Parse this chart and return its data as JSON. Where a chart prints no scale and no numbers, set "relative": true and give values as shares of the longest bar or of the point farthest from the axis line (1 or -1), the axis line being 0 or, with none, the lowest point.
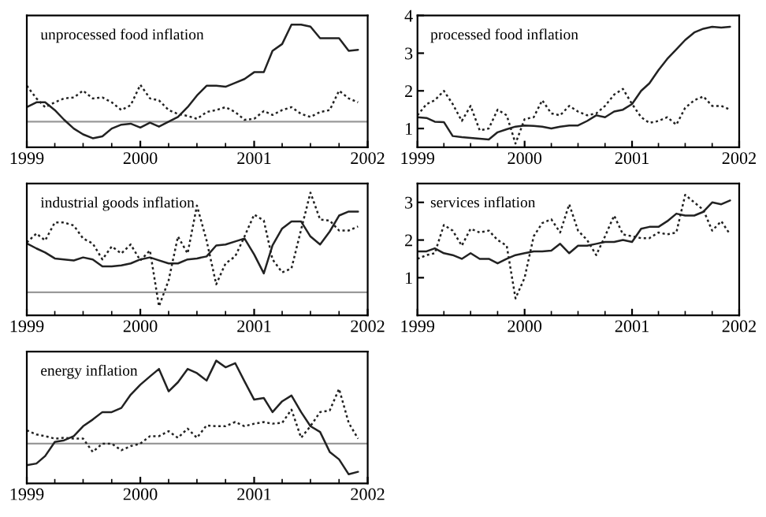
{
  "chart_data": [
    {
      "type": "line",
      "title": "unprocessed food inflation",
      "relative": true,
      "x": [
        "1999-01",
        "1999-02",
        "1999-03",
        "1999-04",
        "1999-05",
        "1999-06",
        "1999-07",
        "1999-08",
        "1999-09",
        "1999-10",
        "1999-11",
        "1999-12",
        "2000-01",
        "2000-02",
        "2000-03",
        "2000-04",
        "2000-05",
        "2000-06",
        "2000-07",
        "2000-08",
        "2000-09",
        "2000-10",
        "2000-11",
        "2000-12",
        "2001-01",
        "2001-02",
        "2001-03",
        "2001-04",
        "2001-05",
        "2001-06",
        "2001-07",
        "2001-08",
        "2001-09",
        "2001-10",
        "2001-11",
        "2001-12"
      ],
      "xlim": [
        "1999",
        "2002"
      ],
      "xticks": [
        "1999",
        "2000",
        "2001",
        "2002"
      ],
      "ref_lines": [
        {
          "axis": "y",
          "value": 0,
          "color": "#999999"
        }
      ],
      "series": [
        {
          "color": "#222222",
          "line_style": "solid",
          "values": [
            0.15,
            0.2,
            0.2,
            0.12,
            0.02,
            -0.07,
            -0.13,
            -0.17,
            -0.15,
            -0.07,
            -0.03,
            -0.02,
            -0.06,
            -0.01,
            -0.05,
            0,
            0.05,
            0.15,
            0.27,
            0.37,
            0.37,
            0.36,
            0.4,
            0.44,
            0.51,
            0.51,
            0.73,
            0.8,
            1,
            1,
            0.98,
            0.86,
            0.86,
            0.86,
            0.73,
            0.74
          ]
        },
        {
          "color": "#222222",
          "line_style": "dotted",
          "values": [
            0.37,
            0.24,
            0.15,
            0.2,
            0.24,
            0.25,
            0.32,
            0.24,
            0.25,
            0.2,
            0.12,
            0.17,
            0.38,
            0.24,
            0.22,
            0.12,
            0.08,
            0.06,
            0.03,
            0.1,
            0.12,
            0.15,
            0.1,
            0.02,
            0.03,
            0.11,
            0.07,
            0.12,
            0.15,
            0.08,
            0.05,
            0.1,
            0.12,
            0.32,
            0.24,
            0.2
          ]
        }
      ]
    },
    {
      "type": "line",
      "title": "processed food inflation",
      "x": [
        "1999-01",
        "1999-02",
        "1999-03",
        "1999-04",
        "1999-05",
        "1999-06",
        "1999-07",
        "1999-08",
        "1999-09",
        "1999-10",
        "1999-11",
        "1999-12",
        "2000-01",
        "2000-02",
        "2000-03",
        "2000-04",
        "2000-05",
        "2000-06",
        "2000-07",
        "2000-08",
        "2000-09",
        "2000-10",
        "2000-11",
        "2000-12",
        "2001-01",
        "2001-02",
        "2001-03",
        "2001-04",
        "2001-05",
        "2001-06",
        "2001-07",
        "2001-08",
        "2001-09",
        "2001-10",
        "2001-11",
        "2001-12"
      ],
      "xlim": [
        "1999",
        "2002"
      ],
      "xticks": [
        "1999",
        "2000",
        "2001",
        "2002"
      ],
      "ylim": [
        0.5,
        4
      ],
      "yticks": [
        1,
        2,
        3,
        4
      ],
      "series": [
        {
          "color": "#222222",
          "line_style": "solid",
          "values": [
            1.3,
            1.28,
            1.18,
            1.17,
            0.8,
            0.77,
            0.75,
            0.73,
            0.71,
            0.9,
            0.98,
            1.05,
            1.08,
            1.07,
            1.05,
            1.0,
            1.05,
            1.08,
            1.08,
            1.2,
            1.35,
            1.3,
            1.45,
            1.5,
            1.65,
            2.0,
            2.2,
            2.55,
            2.85,
            3.1,
            3.35,
            3.55,
            3.65,
            3.7,
            3.68,
            3.7
          ]
        },
        {
          "color": "#222222",
          "line_style": "dotted",
          "values": [
            1.35,
            1.65,
            1.75,
            2.0,
            1.65,
            1.2,
            1.6,
            0.95,
            1.0,
            1.5,
            1.35,
            0.6,
            1.25,
            1.3,
            1.75,
            1.4,
            1.35,
            1.6,
            1.45,
            1.35,
            1.4,
            1.6,
            1.9,
            2.05,
            1.65,
            1.3,
            1.15,
            1.2,
            1.3,
            1.1,
            1.55,
            1.75,
            1.85,
            1.6,
            1.6,
            1.5
          ]
        }
      ]
    },
    {
      "type": "line",
      "title": "industrial goods inflation",
      "relative": true,
      "x": [
        "1999-01",
        "1999-02",
        "1999-03",
        "1999-04",
        "1999-05",
        "1999-06",
        "1999-07",
        "1999-08",
        "1999-09",
        "1999-10",
        "1999-11",
        "1999-12",
        "2000-01",
        "2000-02",
        "2000-03",
        "2000-04",
        "2000-05",
        "2000-06",
        "2000-07",
        "2000-08",
        "2000-09",
        "2000-10",
        "2000-11",
        "2000-12",
        "2001-01",
        "2001-02",
        "2001-03",
        "2001-04",
        "2001-05",
        "2001-06",
        "2001-07",
        "2001-08",
        "2001-09",
        "2001-10",
        "2001-11",
        "2001-12"
      ],
      "xlim": [
        "1999",
        "2002"
      ],
      "xticks": [
        "1999",
        "2000",
        "2001",
        "2002"
      ],
      "ref_lines": [
        {
          "axis": "y",
          "value": 0,
          "color": "#999999"
        }
      ],
      "series": [
        {
          "color": "#222222",
          "line_style": "solid",
          "values": [
            0.49,
            0.44,
            0.4,
            0.34,
            0.33,
            0.32,
            0.35,
            0.33,
            0.26,
            0.26,
            0.27,
            0.29,
            0.33,
            0.35,
            0.32,
            0.29,
            0.29,
            0.33,
            0.34,
            0.36,
            0.47,
            0.48,
            0.51,
            0.54,
            0.38,
            0.19,
            0.47,
            0.64,
            0.71,
            0.71,
            0.56,
            0.48,
            0.61,
            0.77,
            0.81,
            0.81
          ]
        },
        {
          "color": "#222222",
          "line_style": "dotted",
          "values": [
            0.5,
            0.59,
            0.52,
            0.7,
            0.7,
            0.67,
            0.54,
            0.49,
            0.33,
            0.46,
            0.39,
            0.48,
            0.32,
            0.42,
            -0.14,
            0.12,
            0.56,
            0.39,
            0.87,
            0.52,
            0.08,
            0.29,
            0.36,
            0.56,
            0.78,
            0.72,
            0.33,
            0.2,
            0.24,
            0.63,
            1,
            0.73,
            0.72,
            0.62,
            0.62,
            0.66
          ]
        }
      ]
    },
    {
      "type": "line",
      "title": "services inflation",
      "x": [
        "1999-01",
        "1999-02",
        "1999-03",
        "1999-04",
        "1999-05",
        "1999-06",
        "1999-07",
        "1999-08",
        "1999-09",
        "1999-10",
        "1999-11",
        "1999-12",
        "2000-01",
        "2000-02",
        "2000-03",
        "2000-04",
        "2000-05",
        "2000-06",
        "2000-07",
        "2000-08",
        "2000-09",
        "2000-10",
        "2000-11",
        "2000-12",
        "2001-01",
        "2001-02",
        "2001-03",
        "2001-04",
        "2001-05",
        "2001-06",
        "2001-07",
        "2001-08",
        "2001-09",
        "2001-10",
        "2001-11",
        "2001-12"
      ],
      "xlim": [
        "1999",
        "2002"
      ],
      "xticks": [
        "1999",
        "2000",
        "2001",
        "2002"
      ],
      "ylim": [
        0,
        3.5
      ],
      "yticks": [
        1,
        2,
        3
      ],
      "series": [
        {
          "color": "#222222",
          "line_style": "solid",
          "values": [
            1.7,
            1.7,
            1.78,
            1.65,
            1.6,
            1.5,
            1.65,
            1.5,
            1.5,
            1.38,
            1.5,
            1.6,
            1.65,
            1.7,
            1.7,
            1.72,
            1.9,
            1.65,
            1.85,
            1.85,
            1.9,
            1.95,
            1.95,
            2.0,
            1.95,
            2.3,
            2.35,
            2.35,
            2.5,
            2.7,
            2.65,
            2.65,
            2.75,
            3.0,
            2.95,
            3.05
          ]
        },
        {
          "color": "#222222",
          "line_style": "dotted",
          "values": [
            1.5,
            1.6,
            1.65,
            2.4,
            2.25,
            1.85,
            2.3,
            2.2,
            2.25,
            2.0,
            1.85,
            0.45,
            1.0,
            2.1,
            2.45,
            2.55,
            2.2,
            2.95,
            2.25,
            2.0,
            1.6,
            2.1,
            2.65,
            2.15,
            2.1,
            2.05,
            2.05,
            2.2,
            2.15,
            2.2,
            3.2,
            3.0,
            2.8,
            2.25,
            2.5,
            2.15
          ]
        }
      ]
    },
    {
      "type": "line",
      "title": "energy inflation",
      "relative": true,
      "x": [
        "1999-01",
        "1999-02",
        "1999-03",
        "1999-04",
        "1999-05",
        "1999-06",
        "1999-07",
        "1999-08",
        "1999-09",
        "1999-10",
        "1999-11",
        "1999-12",
        "2000-01",
        "2000-02",
        "2000-03",
        "2000-04",
        "2000-05",
        "2000-06",
        "2000-07",
        "2000-08",
        "2000-09",
        "2000-10",
        "2000-11",
        "2000-12",
        "2001-01",
        "2001-02",
        "2001-03",
        "2001-04",
        "2001-05",
        "2001-06",
        "2001-07",
        "2001-08",
        "2001-09",
        "2001-10",
        "2001-11",
        "2001-12"
      ],
      "xlim": [
        "1999",
        "2002"
      ],
      "xticks": [
        "1999",
        "2000",
        "2001",
        "2002"
      ],
      "ref_lines": [
        {
          "axis": "y",
          "value": 0,
          "color": "#999999"
        }
      ],
      "series": [
        {
          "color": "#222222",
          "line_style": "solid",
          "values": [
            -0.26,
            -0.24,
            -0.15,
            0.02,
            0.04,
            0.09,
            0.21,
            0.29,
            0.38,
            0.38,
            0.43,
            0.59,
            0.71,
            0.81,
            0.9,
            0.63,
            0.74,
            0.9,
            0.85,
            0.76,
            1,
            0.92,
            0.97,
            0.75,
            0.53,
            0.55,
            0.38,
            0.51,
            0.58,
            0.38,
            0.21,
            0.14,
            -0.1,
            -0.19,
            -0.37,
            -0.34
          ]
        },
        {
          "color": "#222222",
          "line_style": "dotted",
          "values": [
            0.16,
            0.11,
            0.09,
            0.06,
            0.07,
            0.06,
            0.06,
            -0.1,
            0,
            0,
            -0.08,
            -0.03,
            0,
            0.09,
            0.09,
            0.15,
            0.07,
            0.18,
            0.07,
            0.22,
            0.21,
            0.21,
            0.26,
            0.21,
            0.24,
            0.26,
            0.24,
            0.25,
            0.41,
            0.07,
            0.21,
            0.38,
            0.4,
            0.66,
            0.25,
            0.06
          ]
        }
      ]
    }
  ]
}
